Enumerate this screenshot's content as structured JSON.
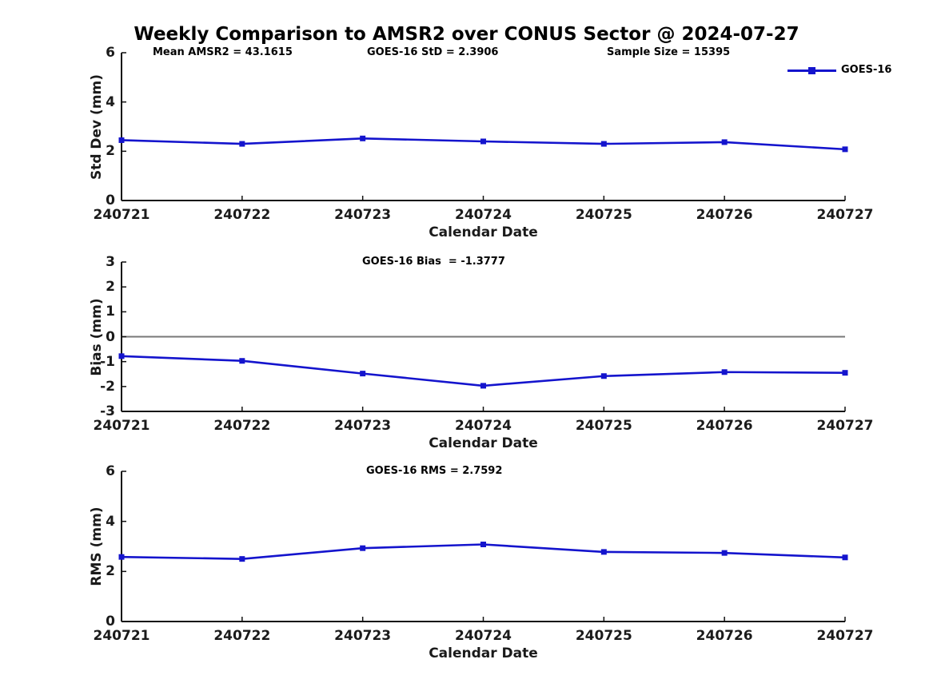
{
  "title": "Weekly Comparison to AMSR2 over CONUS Sector @ 2024-07-27",
  "legend": {
    "label": "GOES-16"
  },
  "colors": {
    "line": "#1414cd",
    "zero_line": "#777777",
    "axis": "#111111",
    "text": "#1a1a1a"
  },
  "chart_data": [
    {
      "type": "line",
      "ylabel": "Std Dev (mm)",
      "xlabel": "Calendar Date",
      "ylim": [
        0,
        6
      ],
      "yticks": [
        0,
        2,
        4,
        6
      ],
      "grid": false,
      "legend_position": "top-right-outside",
      "categories": [
        "240721",
        "240722",
        "240723",
        "240724",
        "240725",
        "240726",
        "240727"
      ],
      "series": [
        {
          "name": "GOES-16",
          "marker": "square",
          "values": [
            2.45,
            2.3,
            2.52,
            2.4,
            2.3,
            2.37,
            2.08
          ]
        }
      ],
      "annotations": [
        {
          "text": "Mean AMSR2 = 43.1615"
        },
        {
          "text": "GOES-16 StD = 2.3906"
        },
        {
          "text": "Sample Size = 15395"
        }
      ]
    },
    {
      "type": "line",
      "ylabel": "Bias (mm)",
      "xlabel": "Calendar Date",
      "ylim": [
        -3,
        3
      ],
      "yticks": [
        -3,
        -2,
        -1,
        0,
        1,
        2,
        3
      ],
      "zero_line": true,
      "grid": false,
      "categories": [
        "240721",
        "240722",
        "240723",
        "240724",
        "240725",
        "240726",
        "240727"
      ],
      "series": [
        {
          "name": "GOES-16",
          "marker": "square",
          "values": [
            -0.78,
            -0.97,
            -1.48,
            -1.97,
            -1.58,
            -1.42,
            -1.45
          ]
        }
      ],
      "annotations": [
        {
          "text": "GOES-16 Bias  = -1.3777"
        }
      ]
    },
    {
      "type": "line",
      "ylabel": "RMS (mm)",
      "xlabel": "Calendar Date",
      "ylim": [
        0,
        6
      ],
      "yticks": [
        0,
        2,
        4,
        6
      ],
      "grid": false,
      "categories": [
        "240721",
        "240722",
        "240723",
        "240724",
        "240725",
        "240726",
        "240727"
      ],
      "series": [
        {
          "name": "GOES-16",
          "marker": "square",
          "values": [
            2.58,
            2.5,
            2.93,
            3.08,
            2.78,
            2.74,
            2.56
          ]
        }
      ],
      "annotations": [
        {
          "text": "GOES-16 RMS = 2.7592"
        }
      ]
    }
  ]
}
